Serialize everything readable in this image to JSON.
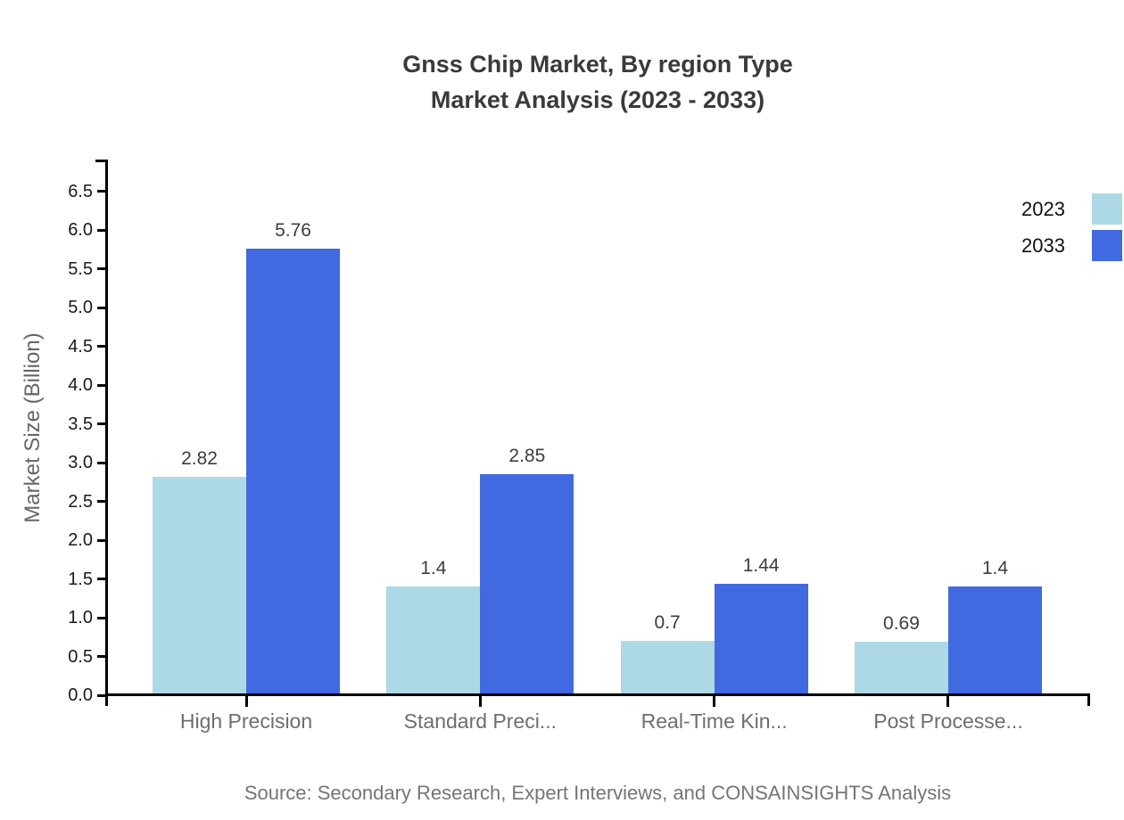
{
  "title": {
    "line1": "Gnss Chip Market, By region Type",
    "line2": "Market Analysis (2023 - 2033)"
  },
  "chart_data": {
    "type": "bar",
    "title": "Gnss Chip Market, By region Type Market Analysis (2023 - 2033)",
    "categories": [
      "High Precision",
      "Standard Preci...",
      "Real-Time Kin...",
      "Post Processe..."
    ],
    "series": [
      {
        "name": "2023",
        "color": "#add8e6",
        "values": [
          2.82,
          1.4,
          0.7,
          0.69
        ],
        "labels": [
          "2.82",
          "1.4",
          "0.7",
          "0.69"
        ]
      },
      {
        "name": "2033",
        "color": "#4169e1",
        "values": [
          5.76,
          2.85,
          1.44,
          1.4
        ],
        "labels": [
          "5.76",
          "2.85",
          "1.44",
          "1.4"
        ]
      }
    ],
    "xlabel": "",
    "ylabel": "Market Size (Billion)",
    "ylim": [
      0,
      6.5
    ],
    "ytick_step": 0.5,
    "yticks": [
      "0.0",
      "0.5",
      "1.0",
      "1.5",
      "2.0",
      "2.5",
      "3.0",
      "3.5",
      "4.0",
      "4.5",
      "5.0",
      "5.5",
      "6.0",
      "6.5"
    ],
    "grid": false,
    "legend_position": "top-right"
  },
  "source": "Source: Secondary Research, Expert Interviews, and CONSAINSIGHTS Analysis"
}
